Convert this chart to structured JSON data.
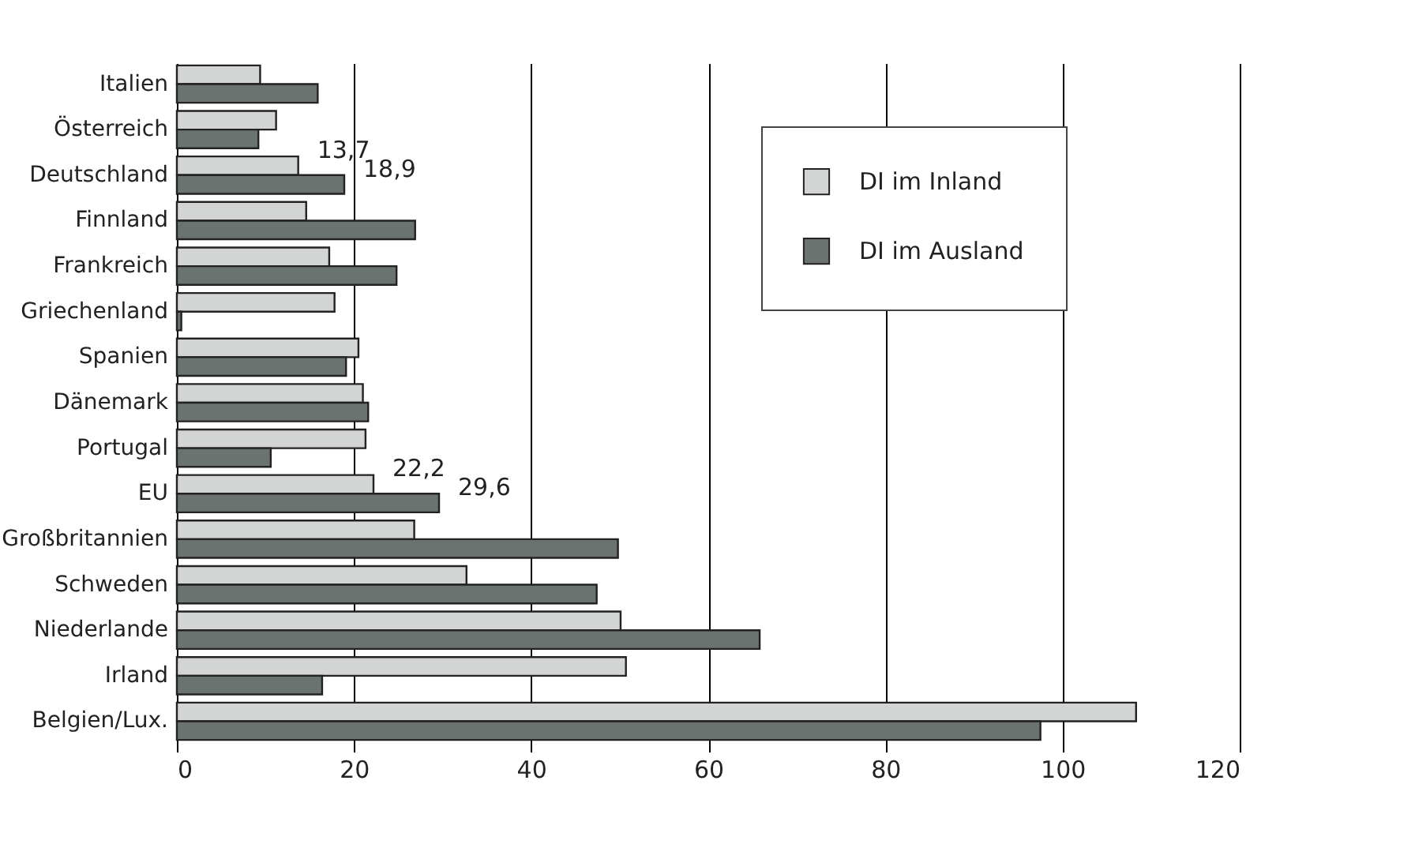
{
  "chart_data": {
    "type": "bar",
    "orientation": "horizontal",
    "categories": [
      "Italien",
      "Österreich",
      "Deutschland",
      "Finnland",
      "Frankreich",
      "Griechenland",
      "Spanien",
      "Dänemark",
      "Portugal",
      "EU",
      "Großbritannien",
      "Schweden",
      "Niederlande",
      "Irland",
      "Belgien/Lux."
    ],
    "series": [
      {
        "name": "DI im Inland",
        "color": "#d3d5d5",
        "values": [
          9.4,
          11.2,
          13.7,
          14.6,
          17.2,
          17.8,
          20.5,
          21.0,
          21.3,
          22.2,
          26.8,
          32.7,
          50.1,
          50.7,
          108.3
        ],
        "value_labels": [
          null,
          null,
          "13,7",
          null,
          null,
          null,
          null,
          null,
          null,
          "22,2",
          null,
          null,
          null,
          null,
          null
        ]
      },
      {
        "name": "DI im Ausland",
        "color": "#6b7370",
        "values": [
          15.9,
          9.2,
          18.9,
          26.9,
          24.8,
          0.5,
          19.1,
          21.6,
          10.6,
          29.6,
          49.8,
          47.4,
          65.8,
          16.4,
          97.5
        ],
        "value_labels": [
          null,
          null,
          "18,9",
          null,
          null,
          null,
          null,
          null,
          null,
          "29,6",
          null,
          null,
          null,
          null,
          null
        ]
      }
    ],
    "xlim": [
      0,
      120
    ],
    "xticks": [
      0,
      20,
      40,
      60,
      80,
      100,
      120
    ],
    "grid": "x",
    "legend": "top right"
  }
}
